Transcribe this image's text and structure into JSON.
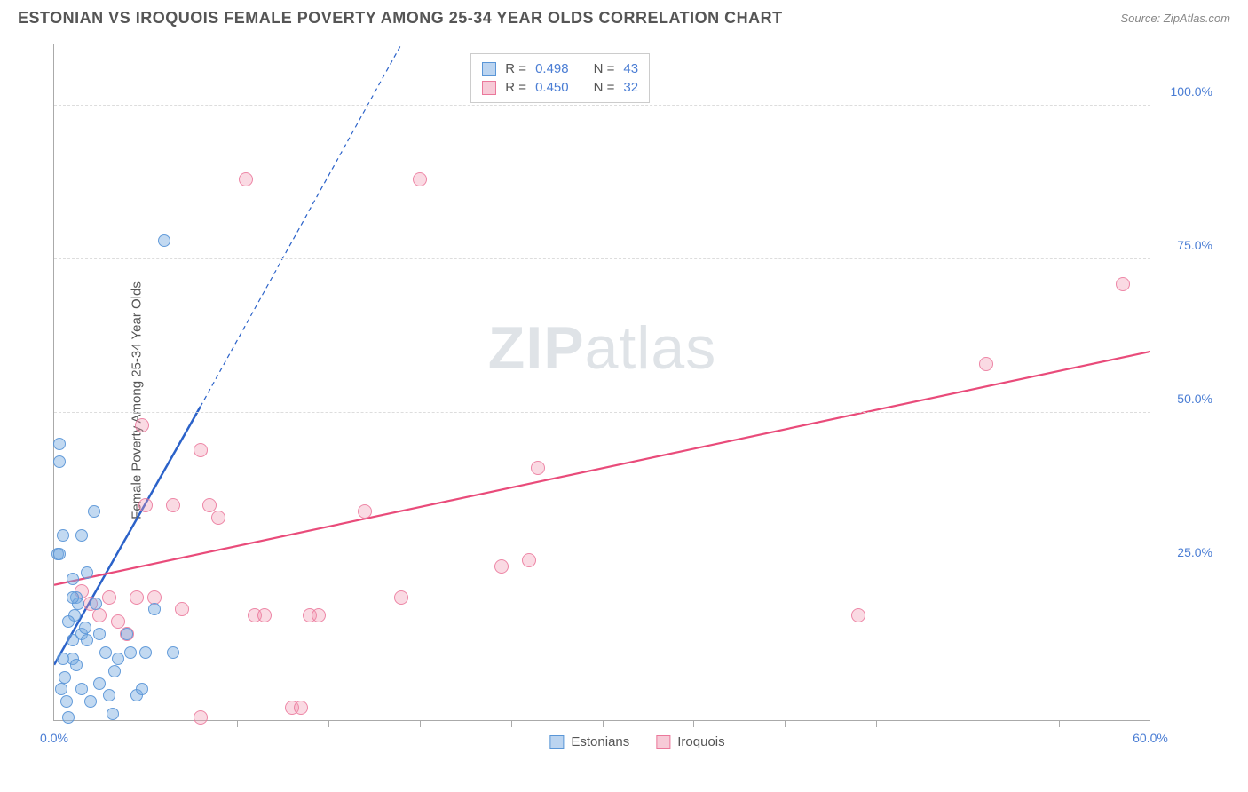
{
  "title": "ESTONIAN VS IROQUOIS FEMALE POVERTY AMONG 25-34 YEAR OLDS CORRELATION CHART",
  "source_label": "Source: ",
  "source_name": "ZipAtlas.com",
  "watermark_zip": "ZIP",
  "watermark_atlas": "atlas",
  "y_axis_label": "Female Poverty Among 25-34 Year Olds",
  "chart": {
    "type": "scatter",
    "xlim": [
      0,
      60
    ],
    "ylim": [
      0,
      110
    ],
    "background_color": "#ffffff",
    "grid_color": "#dddddd",
    "axis_color": "#aaaaaa",
    "label_color": "#4a7dd4",
    "y_ticks": [
      {
        "value": 25,
        "label": "25.0%"
      },
      {
        "value": 50,
        "label": "50.0%"
      },
      {
        "value": 75,
        "label": "75.0%"
      },
      {
        "value": 100,
        "label": "100.0%"
      }
    ],
    "x_tick_positions": [
      5,
      10,
      15,
      20,
      25,
      30,
      35,
      40,
      45,
      50,
      55
    ],
    "x_labels": [
      {
        "value": 0,
        "label": "0.0%"
      },
      {
        "value": 60,
        "label": "60.0%"
      }
    ],
    "series": {
      "estonians": {
        "name": "Estonians",
        "color": "#78aae1",
        "border_color": "#5a96d7",
        "fill_opacity": 0.45,
        "marker_size": 14,
        "trend_color": "#2b62c9",
        "trend_solid": {
          "x1": 0,
          "y1": 9,
          "x2": 8,
          "y2": 51
        },
        "trend_dashed": {
          "x1": 8,
          "y1": 51,
          "x2": 19,
          "y2": 110
        },
        "points": [
          [
            0.3,
            45
          ],
          [
            0.3,
            42
          ],
          [
            0.5,
            30
          ],
          [
            0.2,
            27
          ],
          [
            0.3,
            27
          ],
          [
            0.5,
            10
          ],
          [
            0.6,
            7
          ],
          [
            0.4,
            5
          ],
          [
            0.7,
            3
          ],
          [
            0.8,
            0.5
          ],
          [
            1.0,
            10
          ],
          [
            1.1,
            17
          ],
          [
            1.2,
            20
          ],
          [
            1.3,
            19
          ],
          [
            1.5,
            14
          ],
          [
            1.0,
            23
          ],
          [
            1.5,
            30
          ],
          [
            1.7,
            15
          ],
          [
            1.8,
            13
          ],
          [
            2.0,
            3
          ],
          [
            2.2,
            34
          ],
          [
            2.3,
            19
          ],
          [
            2.5,
            6
          ],
          [
            2.8,
            11
          ],
          [
            3.0,
            4
          ],
          [
            3.2,
            1
          ],
          [
            3.3,
            8
          ],
          [
            3.5,
            10
          ],
          [
            4.0,
            14
          ],
          [
            4.2,
            11
          ],
          [
            4.5,
            4
          ],
          [
            4.8,
            5
          ],
          [
            5.0,
            11
          ],
          [
            5.5,
            18
          ],
          [
            6.0,
            78
          ],
          [
            6.5,
            11
          ],
          [
            1.0,
            13
          ],
          [
            1.2,
            9
          ],
          [
            1.5,
            5
          ],
          [
            0.8,
            16
          ],
          [
            1.0,
            20
          ],
          [
            1.8,
            24
          ],
          [
            2.5,
            14
          ]
        ]
      },
      "iroquois": {
        "name": "Iroquois",
        "color": "#f096af",
        "border_color": "#eb789b",
        "fill_opacity": 0.35,
        "marker_size": 16,
        "trend_color": "#e94b7a",
        "trend_solid": {
          "x1": 0,
          "y1": 22,
          "x2": 60,
          "y2": 60
        },
        "points": [
          [
            1.5,
            21
          ],
          [
            2.0,
            19
          ],
          [
            2.5,
            17
          ],
          [
            3.0,
            20
          ],
          [
            3.5,
            16
          ],
          [
            4.0,
            14
          ],
          [
            4.5,
            20
          ],
          [
            4.8,
            48
          ],
          [
            5.0,
            35
          ],
          [
            5.5,
            20
          ],
          [
            6.5,
            35
          ],
          [
            7.0,
            18
          ],
          [
            8.0,
            44
          ],
          [
            8.5,
            35
          ],
          [
            8.0,
            0.5
          ],
          [
            9.0,
            33
          ],
          [
            10.5,
            88
          ],
          [
            11.0,
            17
          ],
          [
            11.5,
            17
          ],
          [
            13.0,
            2
          ],
          [
            13.5,
            2
          ],
          [
            14.0,
            17
          ],
          [
            14.5,
            17
          ],
          [
            17.0,
            34
          ],
          [
            19.0,
            20
          ],
          [
            20.0,
            88
          ],
          [
            24.5,
            25
          ],
          [
            26.0,
            26
          ],
          [
            26.5,
            41
          ],
          [
            44.0,
            17
          ],
          [
            51.0,
            58
          ],
          [
            58.5,
            71
          ]
        ]
      }
    }
  },
  "stats_legend": {
    "rows": [
      {
        "series": "estonians",
        "r_label": "R =",
        "r_value": "0.498",
        "n_label": "N =",
        "n_value": "43"
      },
      {
        "series": "iroquois",
        "r_label": "R =",
        "r_value": "0.450",
        "n_label": "N =",
        "n_value": "32"
      }
    ]
  },
  "bottom_legend": {
    "items": [
      {
        "series": "estonians",
        "label": "Estonians"
      },
      {
        "series": "iroquois",
        "label": "Iroquois"
      }
    ]
  }
}
